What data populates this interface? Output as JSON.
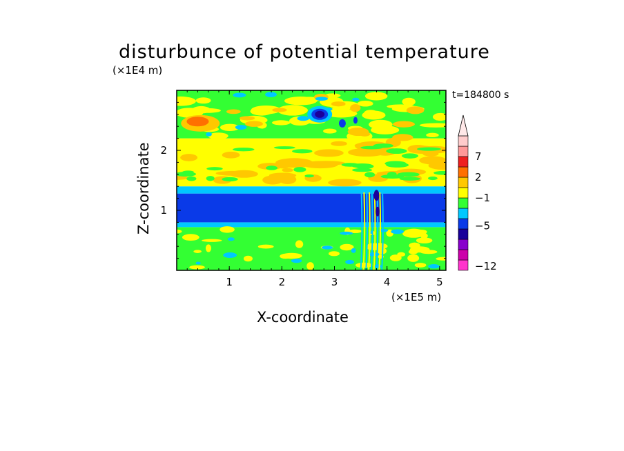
{
  "chart_data": {
    "type": "heatmap",
    "title": "disturbunce of potential temperature",
    "xlabel": "X-coordinate",
    "ylabel": "Z-coordinate",
    "x_unit": "(×1E5 m)",
    "y_unit": "(×1E4 m)",
    "xlim": [
      0,
      5.12
    ],
    "ylim": [
      0,
      3.0
    ],
    "x_ticks": [
      {
        "value": 1,
        "label": "1"
      },
      {
        "value": 2,
        "label": "2"
      },
      {
        "value": 3,
        "label": "3"
      },
      {
        "value": 4,
        "label": "4"
      },
      {
        "value": 5,
        "label": "5"
      }
    ],
    "y_ticks": [
      {
        "value": 1,
        "label": "1"
      },
      {
        "value": 2,
        "label": "2"
      }
    ],
    "annotation": "t=184800 s",
    "colorbar": {
      "levels": [
        {
          "color": "#ff33cc"
        },
        {
          "color": "#cc00aa"
        },
        {
          "color": "#8800cc"
        },
        {
          "color": "#1a009a"
        },
        {
          "color": "#0a3ae8"
        },
        {
          "color": "#00c8ff"
        },
        {
          "color": "#33ff33"
        },
        {
          "color": "#ffff00"
        },
        {
          "color": "#ffc800"
        },
        {
          "color": "#ff7000"
        },
        {
          "color": "#ee1f1f"
        },
        {
          "color": "#ff9999"
        },
        {
          "color": "#ffcccc"
        }
      ],
      "labels": [
        {
          "text": "7",
          "level_index": 10.5
        },
        {
          "text": "2",
          "level_index": 8.5
        },
        {
          "text": "−1",
          "level_index": 6.5
        },
        {
          "text": "−5",
          "level_index": 3.8
        },
        {
          "text": "−12",
          "level_index": -0.1
        }
      ]
    },
    "bands": [
      {
        "z_from": 0.0,
        "z_to": 0.72,
        "level": "green",
        "description": "mostly near-zero with scattered yellow/cyan patches"
      },
      {
        "z_from": 0.72,
        "z_to": 0.8,
        "level": "cyan"
      },
      {
        "z_from": 0.8,
        "z_to": 1.28,
        "level": "blue"
      },
      {
        "z_from": 1.28,
        "z_to": 1.4,
        "level": "cyan"
      },
      {
        "z_from": 1.4,
        "z_to": 2.2,
        "level": "yellow-orange"
      },
      {
        "z_from": 2.2,
        "z_to": 3.0,
        "level": "green-yellow"
      }
    ]
  }
}
